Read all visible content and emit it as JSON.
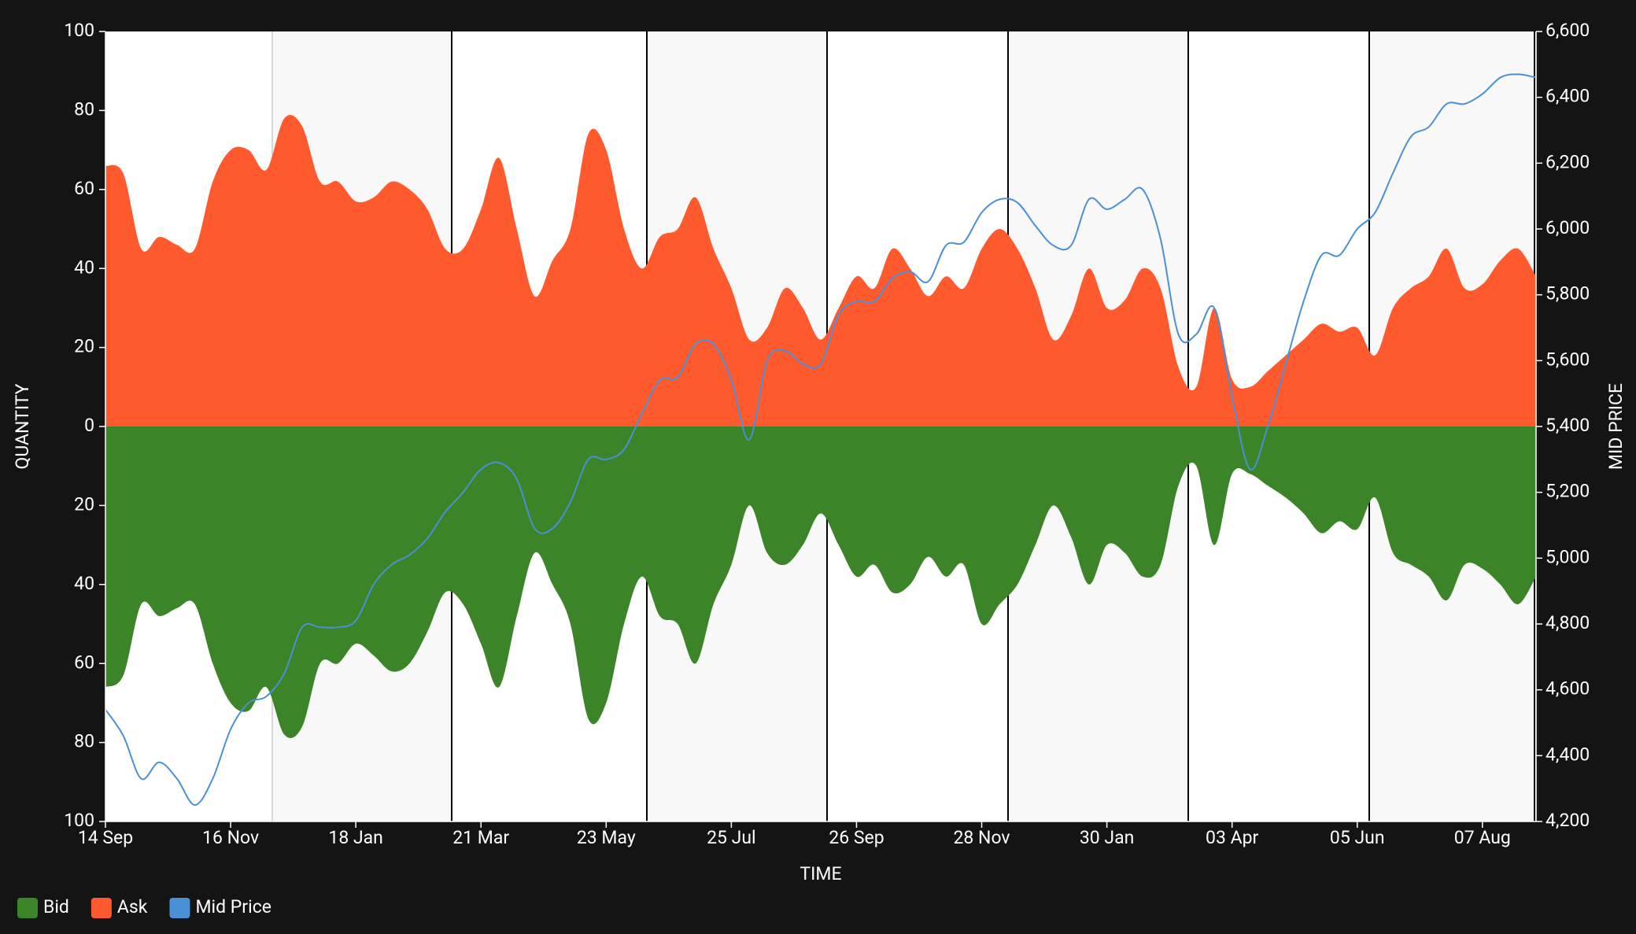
{
  "chart_data": {
    "type": "area",
    "x_label": "TIME",
    "y_label": "QUANTITY",
    "y2_label": "MID PRICE",
    "categories": [
      "14 Sep",
      null,
      null,
      null,
      null,
      null,
      null,
      "16 Nov",
      null,
      null,
      null,
      null,
      null,
      null,
      "18 Jan",
      null,
      null,
      null,
      null,
      null,
      null,
      "21 Mar",
      null,
      null,
      null,
      null,
      null,
      null,
      "23 May",
      null,
      null,
      null,
      null,
      null,
      null,
      "25 Jul",
      null,
      null,
      null,
      null,
      null,
      null,
      "26 Sep",
      null,
      null,
      null,
      null,
      null,
      null,
      "28 Nov",
      null,
      null,
      null,
      null,
      null,
      null,
      "30 Jan",
      null,
      null,
      null,
      null,
      null,
      null,
      "03 Apr",
      null,
      null,
      null,
      null,
      null,
      null,
      "05 Jun",
      null,
      null,
      null,
      null,
      null,
      null,
      "07 Aug",
      null,
      null,
      null
    ],
    "series": [
      {
        "name": "Bid",
        "color": "#3b8427",
        "values": [
          -66,
          -63,
          -45,
          -48,
          -46,
          -45,
          -60,
          -70,
          -72,
          -66,
          -78,
          -76,
          -60,
          -60,
          -55,
          -58,
          -62,
          -60,
          -52,
          -42,
          -45,
          -55,
          -66,
          -48,
          -32,
          -40,
          -50,
          -74,
          -70,
          -50,
          -38,
          -48,
          -50,
          -60,
          -45,
          -35,
          -20,
          -32,
          -35,
          -30,
          -22,
          -30,
          -38,
          -35,
          -42,
          -40,
          -33,
          -38,
          -35,
          -50,
          -45,
          -40,
          -30,
          -20,
          -28,
          -40,
          -30,
          -32,
          -38,
          -35,
          -15,
          -10,
          -30,
          -12,
          -12,
          -15,
          -18,
          -22,
          -27,
          -24,
          -26,
          -18,
          -32,
          -35,
          -38,
          -44,
          -35,
          -36,
          -40,
          -45,
          -38
        ]
      },
      {
        "name": "Ask",
        "color": "#ff5a2e",
        "values": [
          66,
          64,
          45,
          48,
          46,
          45,
          62,
          70,
          70,
          65,
          78,
          76,
          62,
          62,
          57,
          58,
          62,
          60,
          55,
          45,
          45,
          55,
          68,
          50,
          33,
          42,
          50,
          74,
          70,
          50,
          40,
          48,
          50,
          58,
          45,
          35,
          22,
          25,
          35,
          30,
          22,
          30,
          38,
          35,
          45,
          40,
          33,
          38,
          35,
          45,
          50,
          45,
          35,
          22,
          28,
          40,
          30,
          32,
          40,
          35,
          15,
          10,
          30,
          12,
          10,
          14,
          18,
          22,
          26,
          24,
          25,
          18,
          30,
          35,
          38,
          45,
          35,
          36,
          42,
          45,
          38
        ]
      },
      {
        "name": "Mid Price",
        "color": "#4a90d9",
        "axis": "y2",
        "values": [
          4540,
          4460,
          4330,
          4380,
          4330,
          4250,
          4330,
          4480,
          4560,
          4580,
          4650,
          4790,
          4790,
          4790,
          4810,
          4920,
          4980,
          5010,
          5060,
          5140,
          5200,
          5270,
          5290,
          5240,
          5090,
          5090,
          5170,
          5300,
          5300,
          5330,
          5440,
          5540,
          5550,
          5650,
          5650,
          5540,
          5360,
          5600,
          5630,
          5590,
          5590,
          5740,
          5780,
          5780,
          5850,
          5870,
          5840,
          5950,
          5960,
          6050,
          6090,
          6080,
          6010,
          5950,
          5950,
          6090,
          6060,
          6090,
          6120,
          5970,
          5680,
          5680,
          5760,
          5490,
          5270,
          5400,
          5590,
          5780,
          5920,
          5920,
          6000,
          6050,
          6170,
          6280,
          6310,
          6380,
          6380,
          6410,
          6460,
          6470,
          6460
        ]
      }
    ],
    "ylim": [
      -100,
      100
    ],
    "yticks": [
      {
        "value": -100,
        "label": "100"
      },
      {
        "value": -80,
        "label": "80"
      },
      {
        "value": -60,
        "label": "60"
      },
      {
        "value": -40,
        "label": "40"
      },
      {
        "value": -20,
        "label": "20"
      },
      0,
      20,
      40,
      60,
      80,
      100
    ],
    "y2lim": [
      4200,
      6600
    ],
    "y2ticks": [
      {
        "value": 4200,
        "label": "4,200"
      },
      {
        "value": 4400,
        "label": "4,400"
      },
      {
        "value": 4600,
        "label": "4,600"
      },
      {
        "value": 4800,
        "label": "4,800"
      },
      {
        "value": 5000,
        "label": "5,000"
      },
      {
        "value": 5200,
        "label": "5,200"
      },
      {
        "value": 5400,
        "label": "5,400"
      },
      {
        "value": 5600,
        "label": "5,600"
      },
      {
        "value": 5800,
        "label": "5,800"
      },
      {
        "value": 6000,
        "label": "6,000"
      },
      {
        "value": 6200,
        "label": "6,200"
      },
      {
        "value": 6400,
        "label": "6,400"
      },
      {
        "value": 6600,
        "label": "6,600"
      }
    ],
    "legend": "bottom-left"
  }
}
